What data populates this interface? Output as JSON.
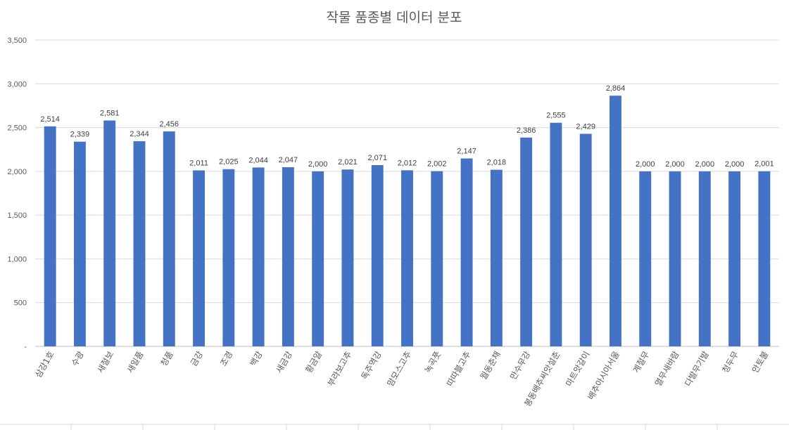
{
  "chart_data": {
    "type": "bar",
    "title": "작물 품종별 데이터 분포",
    "xlabel": "",
    "ylabel": "",
    "ylim": [
      0,
      3500
    ],
    "yticks": [
      "-",
      "500",
      "1,000",
      "1,500",
      "2,000",
      "2,500",
      "3,000",
      "3,500"
    ],
    "grid": true,
    "bar_color": "#4472c4",
    "categories": [
      "삼강1호",
      "수광",
      "새절보",
      "새일품",
      "청품",
      "금강",
      "조경",
      "백강",
      "새금강",
      "황금알",
      "부라보고추",
      "독주역강",
      "맘모스고추",
      "녹곡풋",
      "따따블고추",
      "월동춘채",
      "만수무강",
      "봉동배추씨앗설춘",
      "마트앗갈이",
      "배추아시아서울",
      "계절무",
      "열무새바람",
      "다발무기발",
      "청두무",
      "안토불"
    ],
    "values": [
      2514,
      2339,
      2581,
      2344,
      2456,
      2011,
      2025,
      2044,
      2047,
      2000,
      2021,
      2071,
      2012,
      2002,
      2147,
      2018,
      2386,
      2555,
      2429,
      2864,
      2000,
      2000,
      2000,
      2000,
      2001
    ],
    "data_labels": [
      "2,514",
      "2,339",
      "2,581",
      "2,344",
      "2,456",
      "2,011",
      "2,025",
      "2,044",
      "2,047",
      "2,000",
      "2,021",
      "2,071",
      "2,012",
      "2,002",
      "2,147",
      "2,018",
      "2,386",
      "2,555",
      "2,429",
      "2,864",
      "2,000",
      "2,000",
      "2,000",
      "2,000",
      "2,001"
    ]
  }
}
